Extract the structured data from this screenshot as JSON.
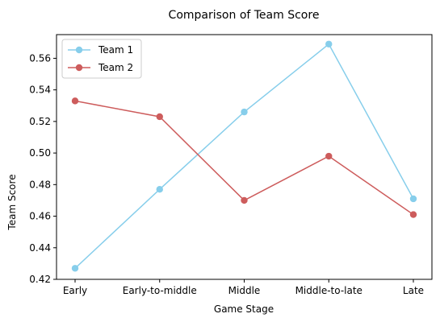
{
  "chart_data": {
    "type": "line",
    "title": "Comparison of Team Score",
    "xlabel": "Game Stage",
    "ylabel": "Team Score",
    "categories": [
      "Early",
      "Early-to-middle",
      "Middle",
      "Middle-to-late",
      "Late"
    ],
    "ylim": [
      0.42,
      0.575
    ],
    "yticks": [
      "0.42",
      "0.44",
      "0.46",
      "0.48",
      "0.50",
      "0.52",
      "0.54",
      "0.56"
    ],
    "grid": false,
    "legend_position": "upper-left",
    "series": [
      {
        "name": "Team 1",
        "color": "#87ceeb",
        "marker": "circle",
        "values": [
          0.427,
          0.477,
          0.526,
          0.569,
          0.471
        ]
      },
      {
        "name": "Team 2",
        "color": "#cd5c5c",
        "marker": "circle",
        "values": [
          0.533,
          0.523,
          0.47,
          0.498,
          0.461
        ]
      }
    ]
  }
}
